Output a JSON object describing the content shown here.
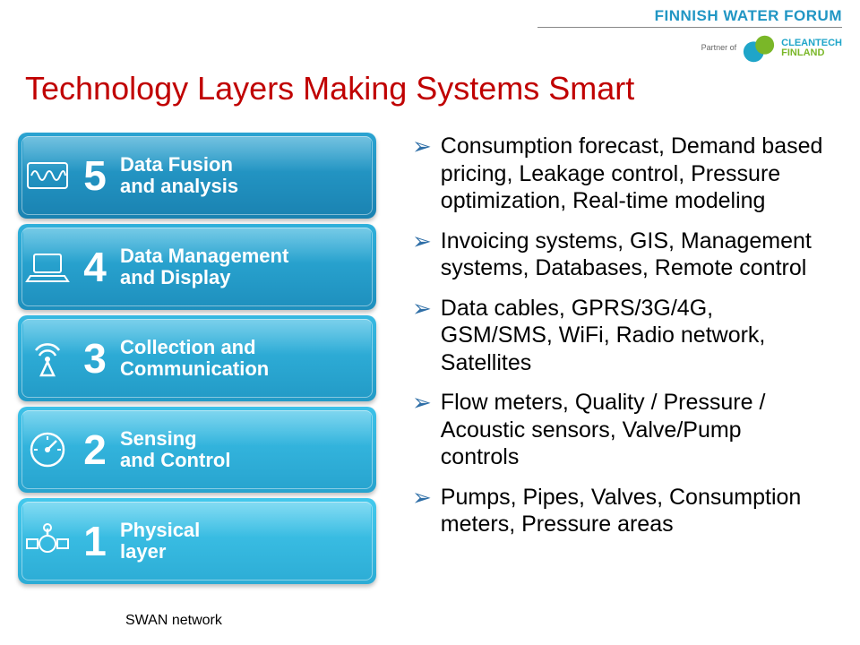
{
  "header": {
    "forum_name": "FINNISH WATER FORUM",
    "partner_of": "Partner of",
    "partner_brand_top": "CLEANTECH",
    "partner_brand_bottom": "FINLAND"
  },
  "title": "Technology Layers Making Systems Smart",
  "layers": [
    {
      "num": "5",
      "label": "Data Fusion\nand analysis",
      "bg_top": "#2aa3d1",
      "bg_bottom": "#1a82b1",
      "icon": "waveform"
    },
    {
      "num": "4",
      "label": "Data Management\nand Display",
      "bg_top": "#2fb0db",
      "bg_bottom": "#1e8fbd",
      "icon": "laptop"
    },
    {
      "num": "3",
      "label": "Collection and\nCommunication",
      "bg_top": "#36b9e2",
      "bg_bottom": "#229ac6",
      "icon": "antenna"
    },
    {
      "num": "2",
      "label": "Sensing\nand Control",
      "bg_top": "#3cc1e8",
      "bg_bottom": "#27a3ce",
      "icon": "gauge"
    },
    {
      "num": "1",
      "label": "Physical\nlayer",
      "bg_top": "#43c9ed",
      "bg_bottom": "#2cacd5",
      "icon": "valve"
    }
  ],
  "bullets": [
    "Consumption forecast, Demand based pricing, Leakage control, Pressure optimization, Real-time modeling",
    "Invoicing systems, GIS, Management systems, Databases, Remote control",
    "Data cables, GPRS/3G/4G, GSM/SMS, WiFi, Radio network, Satellites",
    "Flow meters, Quality / Pressure / Acoustic sensors, Valve/Pump controls",
    "Pumps, Pipes, Valves, Consumption meters, Pressure areas"
  ],
  "source": "SWAN network",
  "colors": {
    "title": "#c00000",
    "forum": "#2196c4",
    "bullet_arrow": "#2f6fa7"
  }
}
